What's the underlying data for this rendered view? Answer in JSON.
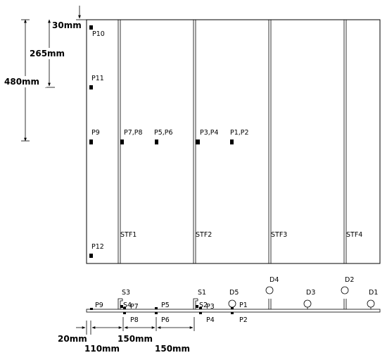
{
  "plan": {
    "dimensions": {
      "d30": "30mm",
      "d265": "265mm",
      "d480": "480mm"
    },
    "points": {
      "p10": "P10",
      "p11": "P11",
      "p9": "P9",
      "p12": "P12",
      "p78": "P7,P8",
      "p56": "P5,P6",
      "p34": "P3,P4",
      "p12pair": "P1,P2"
    },
    "stiffeners": {
      "s1": "STF1",
      "s2": "STF2",
      "s3": "STF3",
      "s4": "STF4"
    }
  },
  "section": {
    "labels": {
      "s3": "S3",
      "s4": "S4",
      "p7": "P7",
      "p8": "P8",
      "p9": "P9",
      "p5": "P5",
      "p6": "P6",
      "s1": "S1",
      "s2": "S2",
      "p3": "P3",
      "p4": "P4",
      "d5": "D5",
      "p1": "P1",
      "p2": "P2",
      "d4": "D4",
      "d3": "D3",
      "d2": "D2",
      "d1": "D1"
    },
    "dimensions": {
      "d20": "20mm",
      "d110": "110mm",
      "d150a": "150mm",
      "d150b": "150mm"
    }
  }
}
